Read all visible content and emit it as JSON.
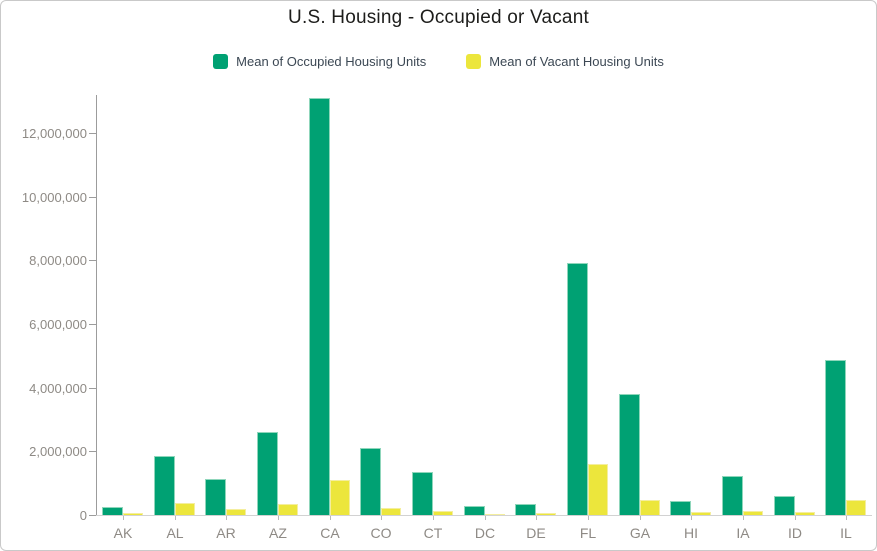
{
  "title": "U.S. Housing - Occupied or Vacant",
  "legend": {
    "items": [
      {
        "label": "Mean of Occupied Housing Units",
        "color": "#00a173",
        "border": "#8fd6bb"
      },
      {
        "label": "Mean of Vacant Housing Units",
        "color": "#ece63c",
        "border": "#f4ee9e"
      }
    ]
  },
  "colors": {
    "occupied": "#00a173",
    "vacant": "#ece63c",
    "axis_line": "#9c9c9c",
    "baseline": "#d2d2d2",
    "tick_text": "#8e8a85",
    "title_text": "#1d1d1b",
    "legend_text": "#3c4854"
  },
  "chart_data": {
    "type": "bar",
    "title": "U.S. Housing - Occupied or Vacant",
    "xlabel": "",
    "ylabel": "",
    "categories": [
      "AK",
      "AL",
      "AR",
      "AZ",
      "CA",
      "CO",
      "CT",
      "DC",
      "DE",
      "FL",
      "GA",
      "HI",
      "IA",
      "ID",
      "IL"
    ],
    "series": [
      {
        "name": "Mean of Occupied Housing Units",
        "color": "#00a173",
        "values": [
          250000,
          1850000,
          1140000,
          2610000,
          13100000,
          2090000,
          1360000,
          270000,
          340000,
          7930000,
          3800000,
          450000,
          1240000,
          610000,
          4870000
        ]
      },
      {
        "name": "Mean of Vacant Housing Units",
        "color": "#ece63c",
        "values": [
          60000,
          370000,
          200000,
          360000,
          1100000,
          220000,
          120000,
          35000,
          65000,
          1600000,
          470000,
          100000,
          140000,
          100000,
          460000
        ]
      }
    ],
    "ylim": [
      0,
      13200000
    ],
    "yticks": [
      0,
      2000000,
      4000000,
      6000000,
      8000000,
      10000000,
      12000000
    ],
    "ytick_labels": [
      "0",
      "2,000,000",
      "4,000,000",
      "6,000,000",
      "8,000,000",
      "10,000,000",
      "12,000,000"
    ],
    "grid": false,
    "legend_position": "top"
  }
}
